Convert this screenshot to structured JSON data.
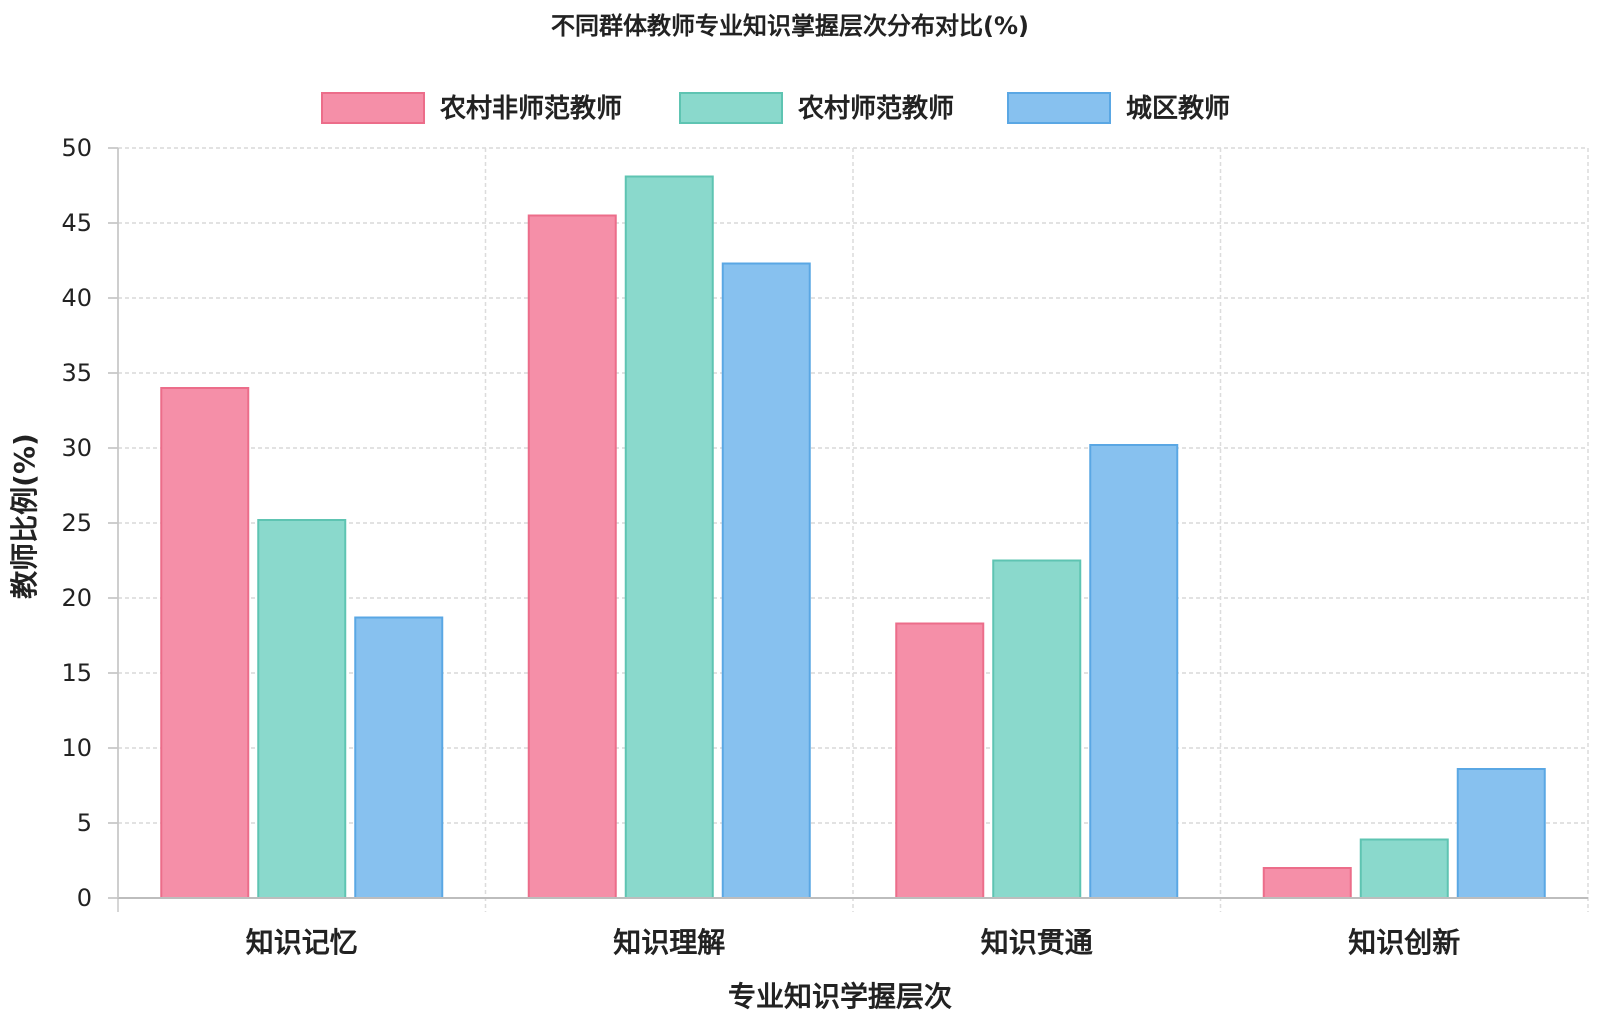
{
  "chart_data": {
    "type": "bar",
    "title": "不同群体教师专业知识掌握层次分布对比(%)",
    "xlabel": "专业知识学握层次",
    "ylabel": "教师比例(%)",
    "ylim": [
      0,
      50
    ],
    "yticks": [
      0,
      5,
      10,
      15,
      20,
      25,
      30,
      35,
      40,
      45,
      50
    ],
    "grid": true,
    "legend_position": "top",
    "categories": [
      "知识记忆",
      "知识理解",
      "知识贯通",
      "知识创新"
    ],
    "series": [
      {
        "name": "农村非师范教师",
        "color": "#f58fa8",
        "stroke": "#ec6d8a",
        "values": [
          34.0,
          45.5,
          18.3,
          2.0
        ]
      },
      {
        "name": "农村师范教师",
        "color": "#8ad9cc",
        "stroke": "#5ec4b2",
        "values": [
          25.2,
          48.1,
          22.5,
          3.9
        ]
      },
      {
        "name": "城区教师",
        "color": "#87c1ef",
        "stroke": "#5aa7e4",
        "values": [
          18.7,
          42.3,
          30.2,
          8.6
        ]
      }
    ]
  }
}
